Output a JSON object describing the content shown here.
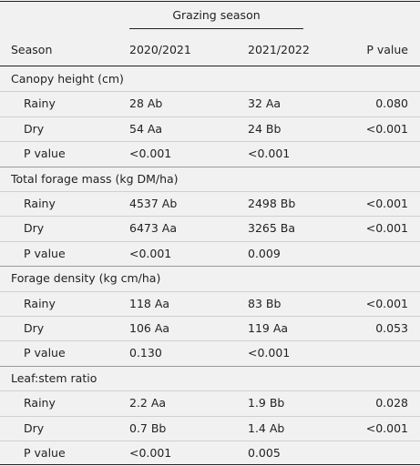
{
  "header": {
    "spanner": "Grazing season",
    "columns": [
      "Season",
      "2020/2021",
      "2021/2022",
      "P value"
    ]
  },
  "sections": [
    {
      "title": "Canopy height (cm)",
      "rows": [
        [
          "Rainy",
          "28 Ab",
          "32 Aa",
          "0.080"
        ],
        [
          "Dry",
          "54 Aa",
          "24 Bb",
          "<0.001"
        ],
        [
          "P value",
          "<0.001",
          "<0.001"
        ]
      ]
    },
    {
      "title": "Total forage mass (kg DM/ha)",
      "rows": [
        [
          "Rainy",
          "4537 Ab",
          "2498 Bb",
          "<0.001"
        ],
        [
          "Dry",
          "6473 Aa",
          "3265 Ba",
          "<0.001"
        ],
        [
          "P value",
          "<0.001",
          "0.009"
        ]
      ]
    },
    {
      "title": "Forage density (kg cm/ha)",
      "rows": [
        [
          "Rainy",
          "118 Aa",
          "83 Bb",
          "<0.001"
        ],
        [
          "Dry",
          "106 Aa",
          "119 Aa",
          "0.053"
        ],
        [
          "P value",
          "0.130",
          "<0.001"
        ]
      ]
    },
    {
      "title": "Leaf:stem ratio",
      "rows": [
        [
          "Rainy",
          "2.2 Aa",
          "1.9 Bb",
          "0.028"
        ],
        [
          "Dry",
          "0.7 Bb",
          "1.4 Ab",
          "<0.001"
        ],
        [
          "P value",
          "<0.001",
          "0.005"
        ]
      ]
    }
  ]
}
